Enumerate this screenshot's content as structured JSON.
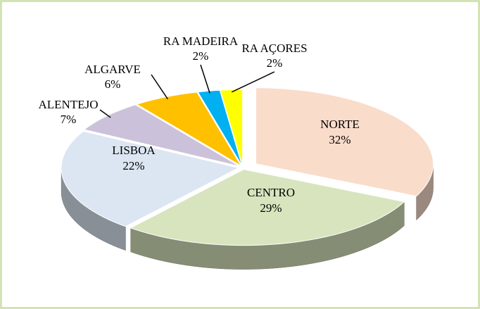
{
  "chart_data": {
    "type": "pie",
    "categories": [
      "NORTE",
      "CENTRO",
      "LISBOA",
      "ALENTEJO",
      "ALGARVE",
      "RA MADEIRA",
      "RA AÇORES"
    ],
    "values": [
      32,
      29,
      22,
      7,
      6,
      2,
      2
    ],
    "value_labels": [
      "32%",
      "29%",
      "22%",
      "7%",
      "6%",
      "2%",
      "2%"
    ],
    "colors": [
      "#fadccb",
      "#d7e4bd",
      "#dce6f2",
      "#ccc1da",
      "#ffc000",
      "#00b0f0",
      "#ffff00"
    ]
  }
}
